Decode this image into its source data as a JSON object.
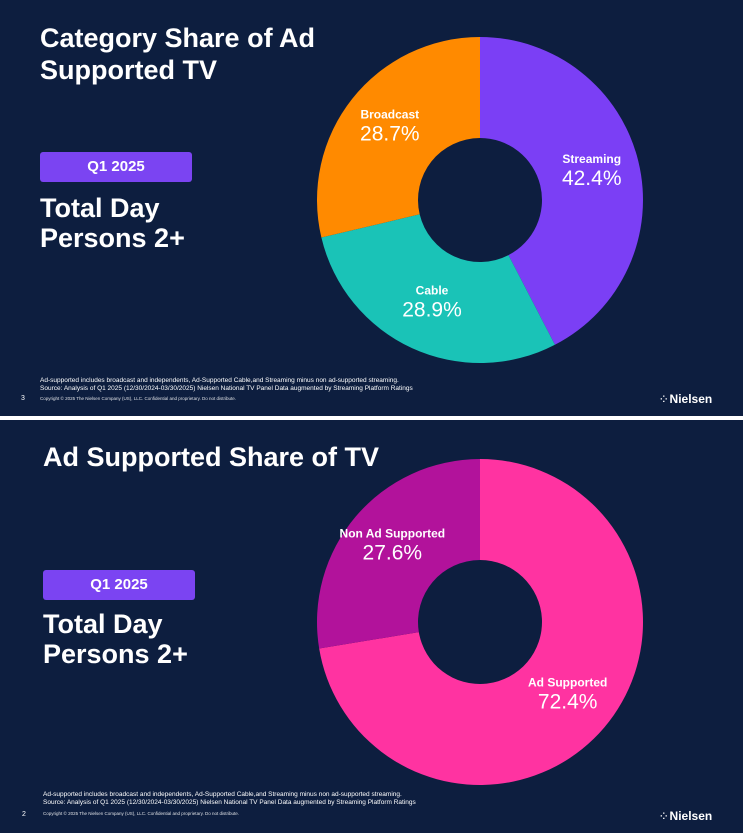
{
  "slides": [
    {
      "title": "Category Share of Ad Supported TV",
      "badge": "Q1 2025",
      "heading_line1": "Total Day",
      "heading_line2": "Persons 2+",
      "footnote_line1": "Ad-supported includes broadcast and independents, Ad-Supported Cable,and Streaming minus non ad-supported streaming.",
      "footnote_line2": "Source: Analysis of Q1 2025 (12/30/2024-03/30/2025)  Nielsen National TV Panel Data augmented by Streaming Platform Ratings",
      "copyright": "Copyright © 2025 The Nielsen Company (US), LLC. Confidential and proprietary. Do not distribute.",
      "page_number": "3",
      "brand": "Nielsen"
    },
    {
      "title": "Ad Supported Share of TV",
      "badge": "Q1 2025",
      "heading_line1": "Total Day",
      "heading_line2": "Persons 2+",
      "footnote_line1": "Ad-supported includes broadcast and independents, Ad-Supported Cable,and Streaming minus non ad-supported streaming.",
      "footnote_line2": "Source: Analysis of Q1 2025 (12/30/2024-03/30/2025)  Nielsen National TV Panel Data augmented by Streaming Platform Ratings",
      "copyright": "Copyright © 2025 The Nielsen Company (US), LLC. Confidential and proprietary. Do not distribute.",
      "page_number": "2",
      "brand": "Nielsen"
    }
  ],
  "chart_data": [
    {
      "type": "pie",
      "variant": "donut",
      "title": "Category Share of Ad Supported TV",
      "start": "12 o'clock",
      "direction": "clockwise",
      "slices": [
        {
          "label": "Streaming",
          "value": 42.4,
          "display": "42.4%",
          "color": "#7b3ff5"
        },
        {
          "label": "Cable",
          "value": 28.9,
          "display": "28.9%",
          "color": "#1ac3b7"
        },
        {
          "label": "Broadcast",
          "value": 28.7,
          "display": "28.7%",
          "color": "#ff8a00"
        }
      ]
    },
    {
      "type": "pie",
      "variant": "donut",
      "title": "Ad Supported Share of TV",
      "start": "12 o'clock",
      "direction": "clockwise",
      "slices": [
        {
          "label": "Ad Supported",
          "value": 72.4,
          "display": "72.4%",
          "color": "#ff33a1"
        },
        {
          "label": "Non Ad Supported",
          "value": 27.6,
          "display": "27.6%",
          "color": "#b2129b"
        }
      ]
    }
  ],
  "colors": {
    "background": "#0d1e3f",
    "badge": "#7b44f2",
    "text": "#ffffff"
  }
}
